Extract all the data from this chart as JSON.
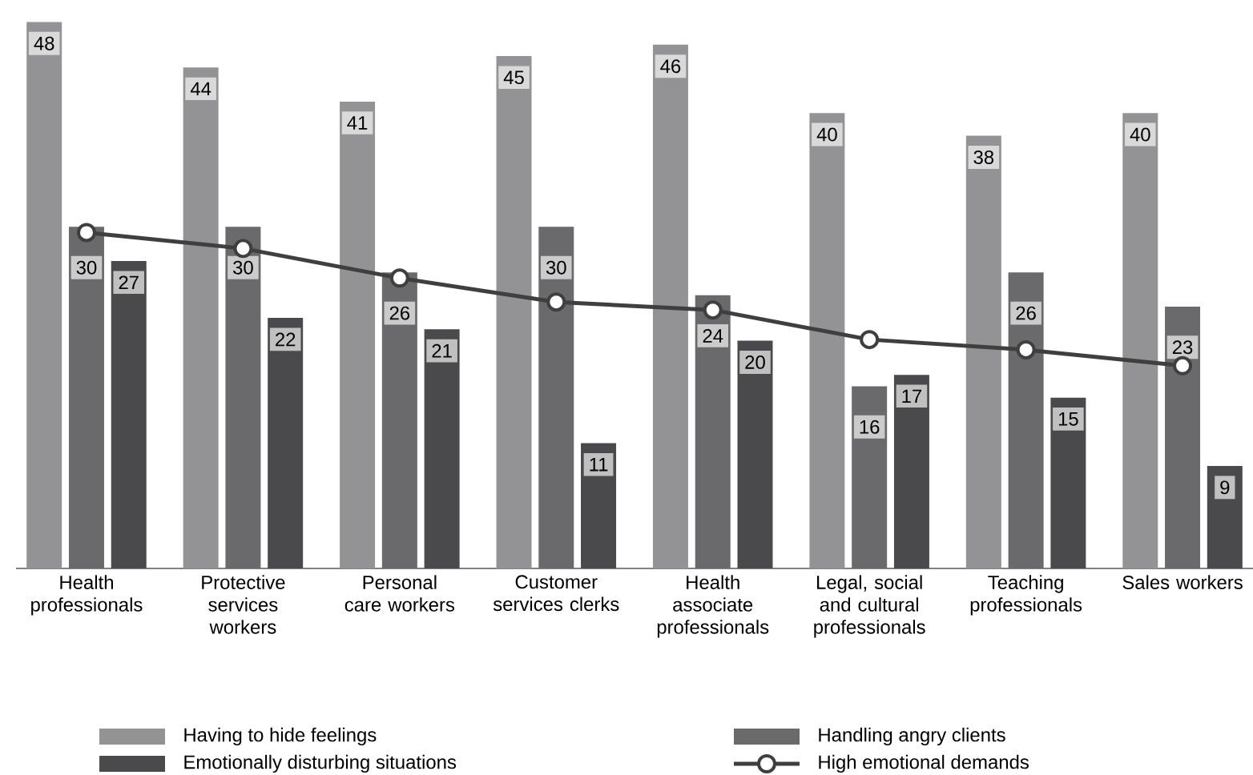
{
  "chart_data": {
    "type": "bar",
    "categories": [
      "Health professionals",
      "Protective services workers",
      "Personal care workers",
      "Customer services clerks",
      "Health associate professionals",
      "Legal, social and cultural professionals",
      "Teaching professionals",
      "Sales workers"
    ],
    "series": [
      {
        "name": "Having to hide feelings",
        "color": "#939395",
        "values": [
          48,
          44,
          41,
          45,
          46,
          40,
          38,
          40
        ]
      },
      {
        "name": "Handling angry clients",
        "color": "#6a6a6c",
        "values": [
          30,
          30,
          26,
          30,
          24,
          16,
          26,
          23
        ]
      },
      {
        "name": "Emotionally disturbing situations",
        "color": "#4a4a4c",
        "values": [
          27,
          22,
          21,
          11,
          20,
          17,
          15,
          9
        ]
      },
      {
        "name": "High emotional demands",
        "type": "line",
        "color": "#3f3f3f",
        "marker": "circle",
        "data_labels": false,
        "values": [
          29.5,
          28.1,
          25.5,
          23.4,
          22.7,
          20.1,
          19.2,
          17.8
        ]
      }
    ],
    "data_labels": true,
    "legend": "bottom",
    "grid": false
  }
}
